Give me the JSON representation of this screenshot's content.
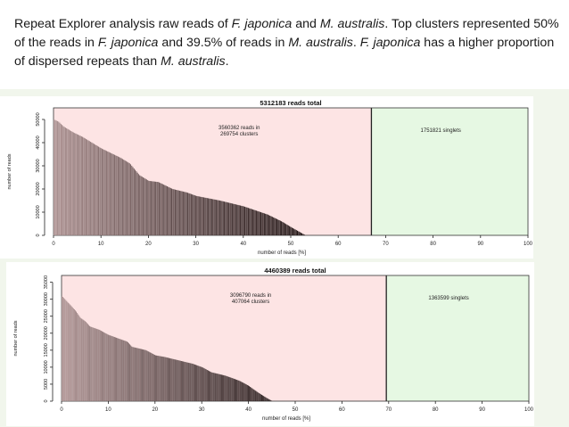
{
  "caption": {
    "p1": "Repeat Explorer analysis raw reads of ",
    "sp1": "F. japonica",
    "p2": " and ",
    "sp2": "M. australis",
    "p3": ". Top clusters represented 50% of the reads in ",
    "sp3": "F. japonica",
    "p4": " and 39.5% of reads in ",
    "sp4": "M. australis",
    "p5": ". ",
    "sp5": "F. japonica",
    "p6": " has a higher proportion of dispersed repeats than ",
    "sp6": "M. australis",
    "p7": "."
  },
  "colors": {
    "cluster_region": "#fde4e4",
    "singlet_region": "#e6f8e3",
    "bar_light": "#a88e8e",
    "bar_dark": "#1e1212",
    "background_band": "#f1f6ec"
  },
  "chart_data": [
    {
      "type": "bar",
      "title": "5312183 reads total",
      "cluster_label_line1": "3560362 reads in",
      "cluster_label_line2": "269754 clusters",
      "singlet_label": "1751821 singlets",
      "xlabel": "number of reads [%]",
      "ylabel": "number of reads",
      "x_ticks": [
        "0",
        "10",
        "20",
        "30",
        "40",
        "50",
        "60",
        "70",
        "80",
        "90",
        "100"
      ],
      "y_ticks": [
        "0",
        "10000",
        "20000",
        "30000",
        "40000",
        "50000"
      ],
      "xlim": [
        0,
        100
      ],
      "ylim": [
        0,
        55000
      ],
      "cluster_region_end": 67,
      "profile_x": [
        0,
        1,
        2,
        4,
        6,
        8,
        10,
        12,
        14,
        16,
        18,
        20,
        22,
        25,
        28,
        30,
        35,
        40,
        45,
        48,
        50,
        52,
        53
      ],
      "profile_y": [
        50000,
        49000,
        47000,
        44500,
        42500,
        40000,
        37500,
        35500,
        33500,
        31000,
        26000,
        23500,
        23000,
        20000,
        18500,
        17000,
        15000,
        12500,
        9000,
        6000,
        3500,
        1200,
        0
      ]
    },
    {
      "type": "bar",
      "title": "4460389 reads total",
      "cluster_label_line1": "3096790 reads in",
      "cluster_label_line2": "407064 clusters",
      "singlet_label": "1363599 singlets",
      "xlabel": "number of reads [%]",
      "ylabel": "number of reads",
      "x_ticks": [
        "0",
        "10",
        "20",
        "30",
        "40",
        "50",
        "60",
        "70",
        "80",
        "90",
        "100"
      ],
      "y_ticks": [
        "0",
        "5000",
        "10000",
        "15000",
        "20000",
        "25000",
        "30000",
        "35000"
      ],
      "xlim": [
        0,
        100
      ],
      "ylim": [
        0,
        37000
      ],
      "cluster_region_end": 69.5,
      "profile_x": [
        0,
        1,
        2,
        3,
        4,
        5,
        6,
        8,
        10,
        12,
        14,
        15,
        18,
        20,
        22,
        25,
        28,
        30,
        32,
        35,
        38,
        40,
        42,
        44,
        45
      ],
      "profile_y": [
        31000,
        29500,
        28000,
        26500,
        24500,
        23500,
        22000,
        21000,
        19500,
        18500,
        17500,
        16000,
        15000,
        13500,
        13000,
        12000,
        11000,
        10000,
        8500,
        7500,
        6000,
        4500,
        2500,
        800,
        0
      ]
    }
  ]
}
